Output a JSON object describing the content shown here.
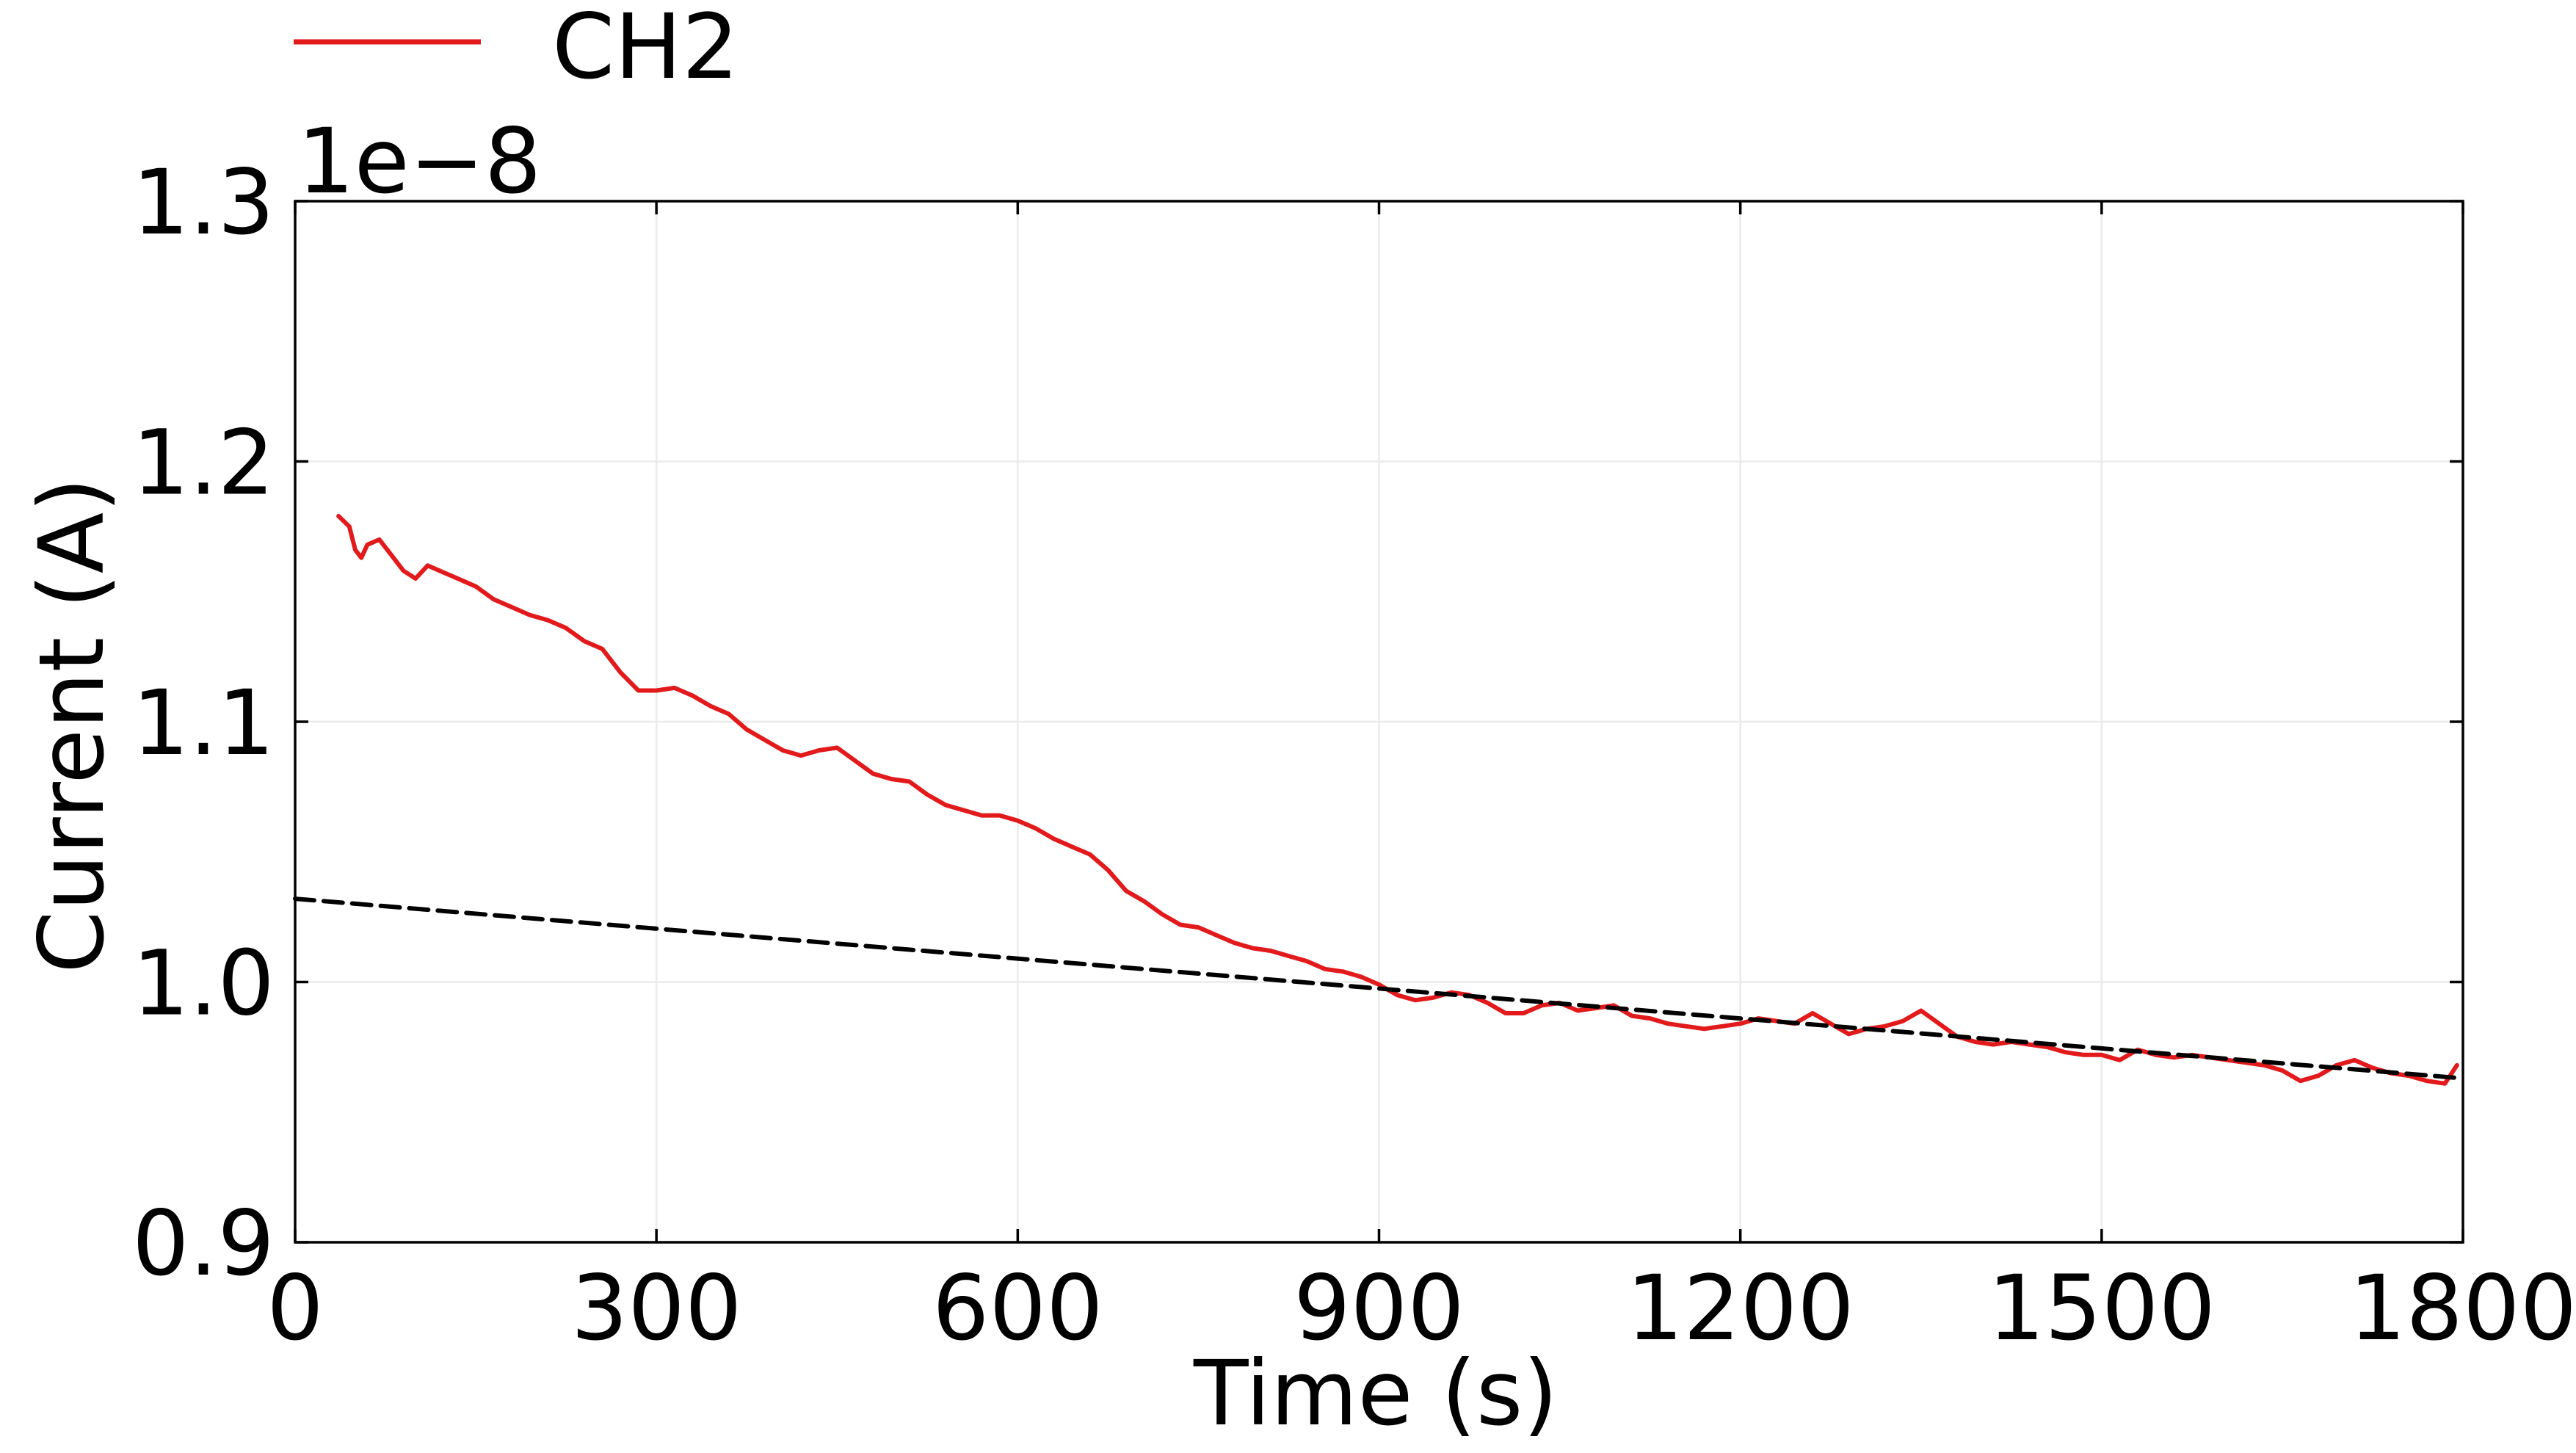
{
  "chart_data": {
    "type": "line",
    "xlabel": "Time (s)",
    "ylabel": "Current (A)",
    "y_scale_label": "1e−8",
    "xlim": [
      0,
      1800
    ],
    "ylim": [
      0.9,
      1.3
    ],
    "xticks": [
      0,
      300,
      600,
      900,
      1200,
      1500,
      1800
    ],
    "xtick_labels": [
      "0",
      "300",
      "600",
      "900",
      "1200",
      "1500",
      "1800"
    ],
    "yticks": [
      0.9,
      1.0,
      1.1,
      1.2,
      1.3
    ],
    "ytick_labels": [
      "0.9",
      "1.0",
      "1.1",
      "1.2",
      "1.3"
    ],
    "grid": true,
    "legend": {
      "placement": "top-left",
      "entries": [
        "CH2"
      ]
    },
    "series": [
      {
        "name": "CH2",
        "color": "#e31a1c",
        "style": "solid",
        "x": [
          36,
          45,
          50,
          55,
          60,
          70,
          80,
          90,
          100,
          110,
          120,
          135,
          150,
          165,
          180,
          195,
          210,
          225,
          240,
          255,
          270,
          285,
          300,
          315,
          330,
          345,
          360,
          375,
          390,
          405,
          420,
          435,
          450,
          465,
          480,
          495,
          510,
          525,
          540,
          555,
          570,
          585,
          600,
          615,
          630,
          645,
          660,
          675,
          690,
          705,
          720,
          735,
          750,
          765,
          780,
          795,
          810,
          825,
          840,
          855,
          870,
          885,
          900,
          915,
          930,
          945,
          960,
          975,
          990,
          1005,
          1020,
          1035,
          1050,
          1065,
          1080,
          1095,
          1110,
          1125,
          1140,
          1155,
          1170,
          1185,
          1200,
          1215,
          1230,
          1245,
          1260,
          1275,
          1290,
          1305,
          1320,
          1335,
          1350,
          1365,
          1380,
          1395,
          1410,
          1425,
          1440,
          1455,
          1470,
          1485,
          1500,
          1515,
          1530,
          1545,
          1560,
          1575,
          1590,
          1605,
          1620,
          1635,
          1650,
          1665,
          1680,
          1695,
          1710,
          1725,
          1740,
          1755,
          1770,
          1785,
          1795
        ],
        "y": [
          1.179,
          1.175,
          1.166,
          1.163,
          1.168,
          1.17,
          1.164,
          1.158,
          1.155,
          1.16,
          1.158,
          1.155,
          1.152,
          1.147,
          1.144,
          1.141,
          1.139,
          1.136,
          1.131,
          1.128,
          1.119,
          1.112,
          1.112,
          1.113,
          1.11,
          1.106,
          1.103,
          1.097,
          1.093,
          1.089,
          1.087,
          1.089,
          1.09,
          1.085,
          1.08,
          1.078,
          1.077,
          1.072,
          1.068,
          1.066,
          1.064,
          1.064,
          1.062,
          1.059,
          1.055,
          1.052,
          1.049,
          1.043,
          1.035,
          1.031,
          1.026,
          1.022,
          1.021,
          1.018,
          1.015,
          1.013,
          1.012,
          1.01,
          1.008,
          1.005,
          1.004,
          1.002,
          0.999,
          0.995,
          0.993,
          0.994,
          0.996,
          0.995,
          0.992,
          0.988,
          0.988,
          0.991,
          0.992,
          0.989,
          0.99,
          0.991,
          0.987,
          0.986,
          0.984,
          0.983,
          0.982,
          0.983,
          0.984,
          0.986,
          0.985,
          0.984,
          0.988,
          0.984,
          0.98,
          0.982,
          0.983,
          0.985,
          0.989,
          0.984,
          0.979,
          0.977,
          0.976,
          0.977,
          0.976,
          0.975,
          0.973,
          0.972,
          0.972,
          0.97,
          0.974,
          0.972,
          0.971,
          0.972,
          0.971,
          0.97,
          0.969,
          0.968,
          0.966,
          0.962,
          0.964,
          0.968,
          0.97,
          0.967,
          0.965,
          0.964,
          0.962,
          0.961,
          0.968
        ]
      },
      {
        "color": "#000000",
        "style": "dashed",
        "x": [
          0,
          1800
        ],
        "y": [
          1.032,
          0.963
        ]
      }
    ]
  }
}
